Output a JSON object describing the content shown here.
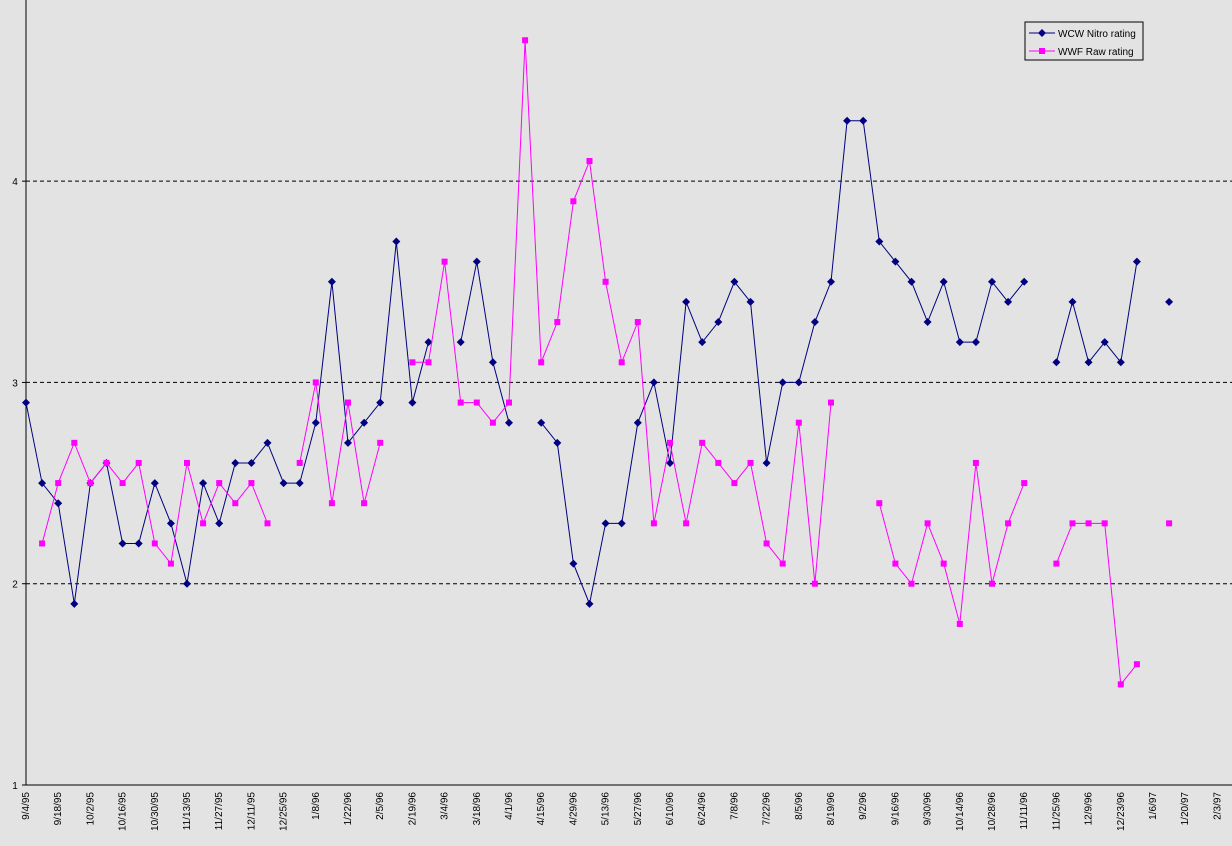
{
  "chart_data": {
    "type": "line",
    "categories": [
      "9/4/95",
      null,
      "9/18/95",
      null,
      "10/2/95",
      null,
      "10/16/95",
      null,
      "10/30/95",
      null,
      "11/13/95",
      null,
      "11/27/95",
      null,
      "12/11/95",
      null,
      "12/25/95",
      null,
      "1/8/96",
      null,
      "1/22/96",
      null,
      "2/5/96",
      null,
      "2/19/96",
      null,
      "3/4/96",
      null,
      "3/18/96",
      null,
      "4/1/96",
      null,
      "4/15/96",
      null,
      "4/29/96",
      null,
      "5/13/96",
      null,
      "5/27/96",
      null,
      "6/10/96",
      null,
      "6/24/96",
      null,
      "7/8/96",
      null,
      "7/22/96",
      null,
      "8/5/96",
      null,
      "8/19/96",
      null,
      "9/2/96",
      null,
      "9/16/96",
      null,
      "9/30/96",
      null,
      "10/14/96",
      null,
      "10/28/96",
      null,
      "11/11/96",
      null,
      "11/25/96",
      null,
      "12/9/96",
      null,
      "12/23/96",
      null,
      "1/6/97",
      null,
      "1/20/97",
      null,
      "2/3/97"
    ],
    "series": [
      {
        "name": "WCW Nitro rating",
        "color": "#000080",
        "marker": "diamond",
        "values": [
          2.9,
          2.5,
          2.4,
          1.9,
          2.5,
          2.6,
          2.2,
          2.2,
          2.5,
          2.3,
          2.0,
          2.5,
          2.3,
          2.6,
          2.6,
          2.7,
          2.5,
          2.5,
          2.8,
          3.5,
          2.7,
          2.8,
          2.9,
          3.7,
          2.9,
          3.2,
          null,
          3.2,
          3.6,
          3.1,
          2.8,
          null,
          2.8,
          2.7,
          2.1,
          1.9,
          2.3,
          2.3,
          2.8,
          3.0,
          2.6,
          3.4,
          3.2,
          3.3,
          3.5,
          3.4,
          2.6,
          3.0,
          3.0,
          3.3,
          3.5,
          4.3,
          4.3,
          3.7,
          3.6,
          3.5,
          3.3,
          3.5,
          3.2,
          3.2,
          3.5,
          3.4,
          3.5,
          null,
          3.1,
          3.4,
          3.1,
          3.2,
          3.1,
          3.6,
          null,
          3.4,
          null,
          null,
          null
        ]
      },
      {
        "name": "WWF Raw rating",
        "color": "#ff00ff",
        "marker": "square",
        "values": [
          null,
          2.2,
          2.5,
          2.7,
          2.5,
          2.6,
          2.5,
          2.6,
          2.2,
          2.1,
          2.6,
          2.3,
          2.5,
          2.4,
          2.5,
          2.3,
          null,
          2.6,
          3.0,
          2.4,
          2.9,
          2.4,
          2.7,
          null,
          3.1,
          3.1,
          3.6,
          2.9,
          2.9,
          2.8,
          2.9,
          4.7,
          3.1,
          3.3,
          3.9,
          4.1,
          3.5,
          3.1,
          3.3,
          2.3,
          2.7,
          2.3,
          2.7,
          2.6,
          2.5,
          2.6,
          2.2,
          2.1,
          2.8,
          2.0,
          2.9,
          null,
          null,
          2.4,
          2.1,
          2.0,
          2.3,
          2.1,
          1.8,
          2.6,
          2.0,
          2.3,
          2.5,
          null,
          2.1,
          2.3,
          2.3,
          2.3,
          1.5,
          1.6,
          null,
          2.3,
          null,
          null,
          null
        ]
      }
    ],
    "ylim": [
      1,
      4.9
    ],
    "yticks": [
      1,
      2,
      3,
      4
    ],
    "grid": true,
    "legend": "upper right"
  }
}
